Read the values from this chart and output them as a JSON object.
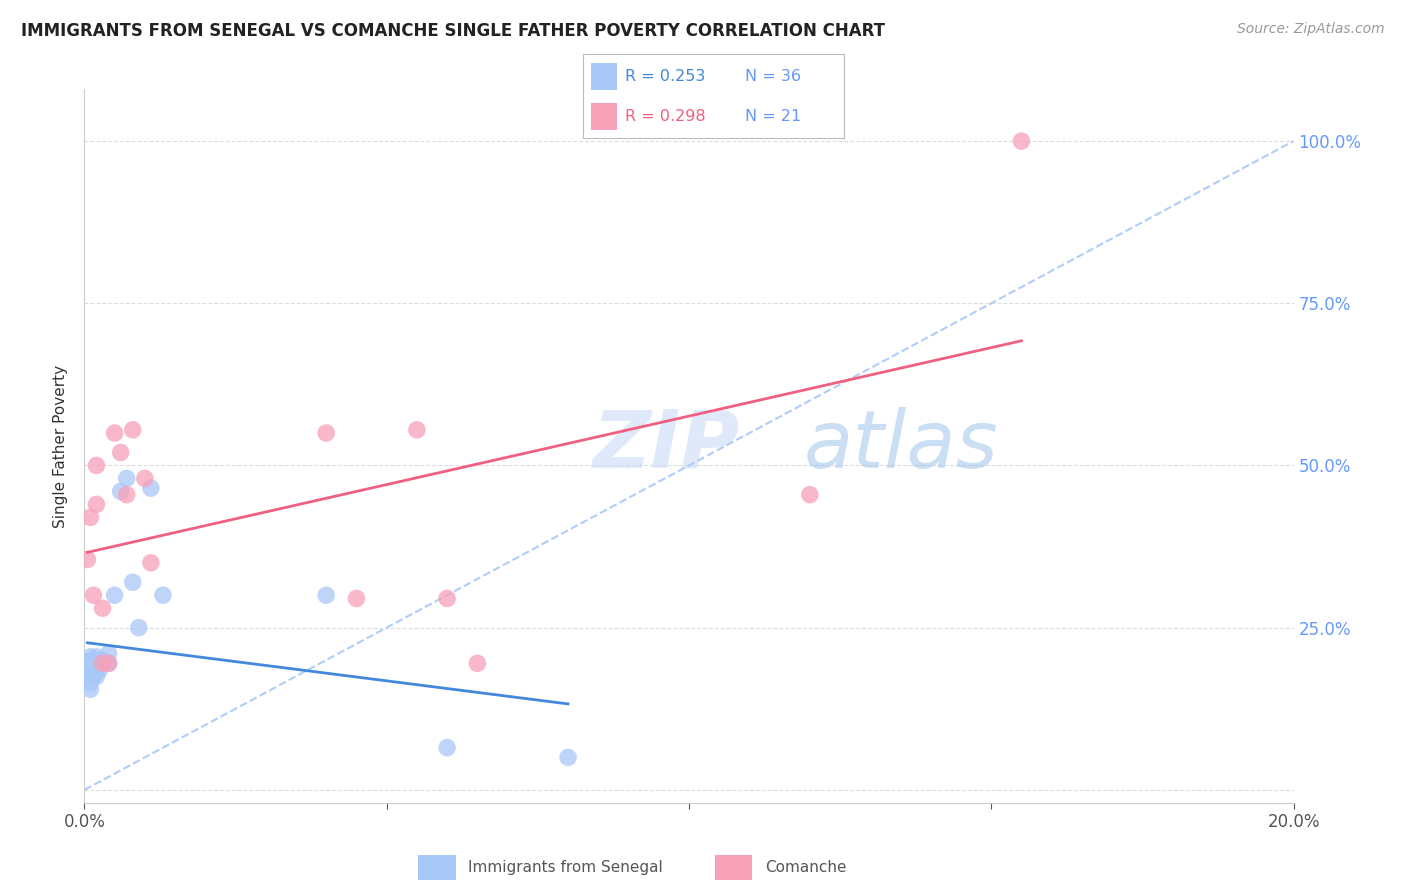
{
  "title": "IMMIGRANTS FROM SENEGAL VS COMANCHE SINGLE FATHER POVERTY CORRELATION CHART",
  "source": "Source: ZipAtlas.com",
  "ylabel": "Single Father Poverty",
  "xlim": [
    0.0,
    0.2
  ],
  "ylim": [
    -0.02,
    1.08
  ],
  "yticks": [
    0.0,
    0.25,
    0.5,
    0.75,
    1.0
  ],
  "ytick_labels": [
    "",
    "25.0%",
    "50.0%",
    "75.0%",
    "100.0%"
  ],
  "xticks": [
    0.0,
    0.05,
    0.1,
    0.15,
    0.2
  ],
  "xtick_labels": [
    "0.0%",
    "",
    "",
    "",
    "20.0%"
  ],
  "legend_r1": "R = 0.253",
  "legend_n1": "N = 36",
  "legend_r2": "R = 0.298",
  "legend_n2": "N = 21",
  "blue_color": "#a8c8f8",
  "pink_color": "#f8a0b8",
  "blue_line_color": "#4488dd",
  "pink_line_color": "#f06080",
  "dashed_line_color": "#a8c8f8",
  "right_axis_color": "#6699ff",
  "watermark_zip": "ZIP",
  "watermark_atlas": "atlas",
  "senegal_x": [
    0.0005,
    0.0005,
    0.0005,
    0.0008,
    0.0008,
    0.001,
    0.001,
    0.001,
    0.001,
    0.001,
    0.001,
    0.0012,
    0.0012,
    0.0012,
    0.0015,
    0.0015,
    0.0015,
    0.002,
    0.002,
    0.002,
    0.002,
    0.0025,
    0.003,
    0.003,
    0.004,
    0.004,
    0.005,
    0.006,
    0.007,
    0.008,
    0.009,
    0.011,
    0.013,
    0.04,
    0.06,
    0.08
  ],
  "senegal_y": [
    0.175,
    0.185,
    0.195,
    0.175,
    0.185,
    0.155,
    0.165,
    0.175,
    0.185,
    0.195,
    0.205,
    0.175,
    0.185,
    0.2,
    0.175,
    0.185,
    0.2,
    0.175,
    0.185,
    0.195,
    0.205,
    0.185,
    0.195,
    0.2,
    0.195,
    0.21,
    0.3,
    0.46,
    0.48,
    0.32,
    0.25,
    0.465,
    0.3,
    0.3,
    0.065,
    0.05
  ],
  "comanche_x": [
    0.0005,
    0.001,
    0.0015,
    0.002,
    0.002,
    0.003,
    0.003,
    0.004,
    0.005,
    0.006,
    0.007,
    0.008,
    0.01,
    0.011,
    0.04,
    0.045,
    0.055,
    0.06,
    0.065,
    0.12,
    0.155
  ],
  "comanche_y": [
    0.355,
    0.42,
    0.3,
    0.44,
    0.5,
    0.195,
    0.28,
    0.195,
    0.55,
    0.52,
    0.455,
    0.555,
    0.48,
    0.35,
    0.55,
    0.295,
    0.555,
    0.295,
    0.195,
    0.455,
    1.0
  ],
  "background_color": "#ffffff"
}
